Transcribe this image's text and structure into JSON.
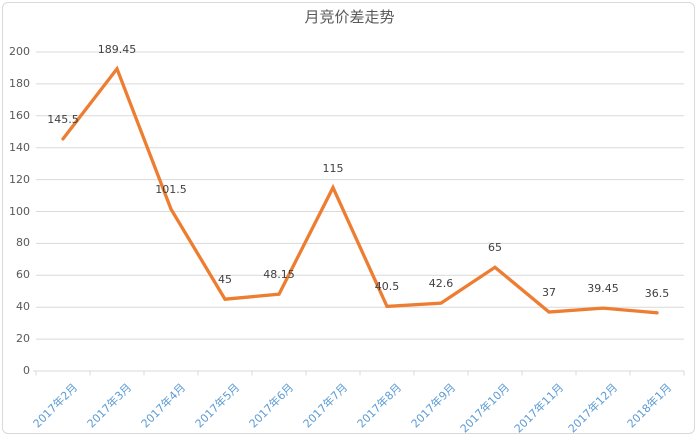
{
  "chart": {
    "colors": {
      "line": "#ED7D31",
      "gridline": "#D9D9D9",
      "axis_line": "#D9D9D9",
      "y_label": "#595959",
      "x_label": "#5B9BD5",
      "data_label": "#404040",
      "title": "#595959",
      "border": "#D9D9D9",
      "background": "#FFFFFF"
    }
  },
  "chart_data": {
    "type": "line",
    "title": "月竞价差走势",
    "categories": [
      "2017年2月",
      "2017年3月",
      "2017年4月",
      "2017年5月",
      "2017年6月",
      "2017年7月",
      "2017年8月",
      "2017年9月",
      "2017年10月",
      "2017年11月",
      "2017年12月",
      "2018年1月"
    ],
    "values": [
      145.5,
      189.45,
      101.5,
      45,
      48.15,
      115,
      40.5,
      42.6,
      65,
      37,
      39.45,
      36.5
    ],
    "data_labels": [
      "145.5",
      "189.45",
      "101.5",
      "45",
      "48.15",
      "115",
      "40.5",
      "42.6",
      "65",
      "37",
      "39.45",
      "36.5"
    ],
    "series_name": "月竞价差",
    "xlabel": "",
    "ylabel": "",
    "ylim": [
      0,
      200
    ],
    "yticks": [
      0,
      20,
      40,
      60,
      80,
      100,
      120,
      140,
      160,
      180,
      200
    ],
    "grid": true,
    "legend": "none",
    "marker": "none"
  }
}
